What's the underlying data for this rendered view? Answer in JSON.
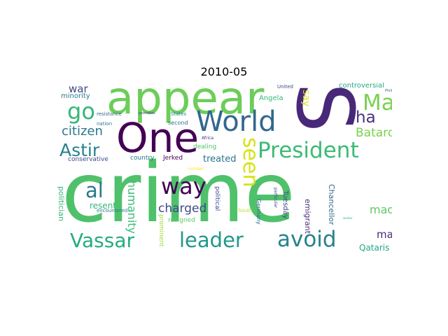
{
  "title": "2010-05",
  "words": [
    {
      "text": "crime",
      "color": "#4fc16b"
    },
    {
      "text": "S",
      "color": "#482878"
    },
    {
      "text": "appear",
      "color": "#6ccd5a"
    },
    {
      "text": "One",
      "color": "#440154"
    },
    {
      "text": "World",
      "color": "#31688e"
    },
    {
      "text": "May",
      "color": "#7ad151"
    },
    {
      "text": "go",
      "color": "#35b779"
    },
    {
      "text": "President",
      "color": "#3bbb75"
    },
    {
      "text": "Astir",
      "color": "#26828e"
    },
    {
      "text": "seen",
      "color": "#d8e219"
    },
    {
      "text": "way",
      "color": "#440154"
    },
    {
      "text": "al",
      "color": "#2a788e"
    },
    {
      "text": "ha",
      "color": "#46327e"
    },
    {
      "text": "citizen",
      "color": "#2a788e"
    },
    {
      "text": "Batard",
      "color": "#7ad151"
    },
    {
      "text": "Vassar",
      "color": "#25ab82"
    },
    {
      "text": "leader",
      "color": "#1f988b"
    },
    {
      "text": "avoid",
      "color": "#26828e"
    },
    {
      "text": "charged",
      "color": "#3e4989"
    },
    {
      "text": "humanity",
      "color": "#3bbb75"
    },
    {
      "text": "war",
      "color": "#3e4989"
    },
    {
      "text": "made",
      "color": "#5ec962"
    },
    {
      "text": "many",
      "color": "#482878"
    },
    {
      "text": "treated",
      "color": "#2c728e"
    },
    {
      "text": "resent",
      "color": "#35b779"
    },
    {
      "text": "Qataris",
      "color": "#22a884"
    },
    {
      "text": "minority",
      "color": "#2a788e"
    },
    {
      "text": "controversial",
      "color": "#22a884"
    },
    {
      "text": "Angela",
      "color": "#35b779"
    },
    {
      "text": "say",
      "color": "#d8e219"
    },
    {
      "text": "blow",
      "color": "#46327e"
    },
    {
      "text": "United",
      "color": "#3e4989"
    },
    {
      "text": "Philippines",
      "color": "#31688e"
    },
    {
      "text": "resistance",
      "color": "#31688e"
    },
    {
      "text": "promotes",
      "color": "#3e4989"
    },
    {
      "text": "States",
      "color": "#26828e"
    },
    {
      "text": "nation",
      "color": "#2a788e"
    },
    {
      "text": "second",
      "color": "#2c728e"
    },
    {
      "text": "encountered",
      "color": "#2a788e"
    },
    {
      "text": "Africa",
      "color": "#46327e"
    },
    {
      "text": "conservative",
      "color": "#3e4989"
    },
    {
      "text": "country",
      "color": "#2a788e"
    },
    {
      "text": "Jerked",
      "color": "#440154"
    },
    {
      "text": "dealing",
      "color": "#4fc16b"
    },
    {
      "text": "number",
      "color": "#fde725"
    },
    {
      "text": "abroad",
      "color": "#5ec962"
    },
    {
      "text": "worker",
      "color": "#35b779"
    },
    {
      "text": "politician",
      "color": "#35b779"
    },
    {
      "text": "political",
      "color": "#3e4989"
    },
    {
      "text": "resigned",
      "color": "#5ec962"
    },
    {
      "text": "prominent",
      "color": "#a0da39"
    },
    {
      "text": "South",
      "color": "#b5de2b"
    },
    {
      "text": "Germany",
      "color": "#31688e"
    },
    {
      "text": "particular",
      "color": "#3e4989"
    },
    {
      "text": "Tuesday",
      "color": "#3e4989"
    },
    {
      "text": "emigrant",
      "color": "#472d7b"
    },
    {
      "text": "Chancellor",
      "color": "#31688e"
    },
    {
      "text": "diminished",
      "color": "#482878"
    }
  ]
}
